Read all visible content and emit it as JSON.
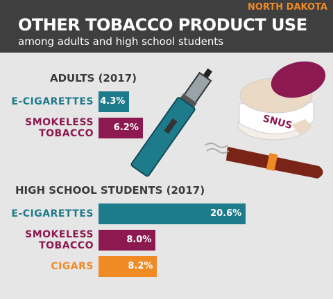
{
  "header": {
    "state": "NORTH DAKOTA",
    "title": "OTHER TOBACCO PRODUCT USE",
    "subtitle": "among adults and high school students"
  },
  "illustration": {
    "snus_label": "SNUS"
  },
  "chart_data": [
    {
      "type": "bar",
      "title": "ADULTS (2017)",
      "categories": [
        "E-CIGARETTES",
        "SMOKELESS TOBACCO"
      ],
      "values": [
        4.3,
        6.2
      ],
      "value_labels": [
        "4.3%",
        "6.2%"
      ],
      "colors": [
        "#1e7b8c",
        "#8c1a50"
      ]
    },
    {
      "type": "bar",
      "title": "HIGH SCHOOL STUDENTS (2017)",
      "categories": [
        "E-CIGARETTES",
        "SMOKELESS TOBACCO",
        "CIGARS"
      ],
      "values": [
        20.6,
        8.0,
        8.2
      ],
      "value_labels": [
        "20.6%",
        "8.0%",
        "8.2%"
      ],
      "colors": [
        "#1e7b8c",
        "#8c1a50",
        "#f08a24"
      ]
    }
  ]
}
